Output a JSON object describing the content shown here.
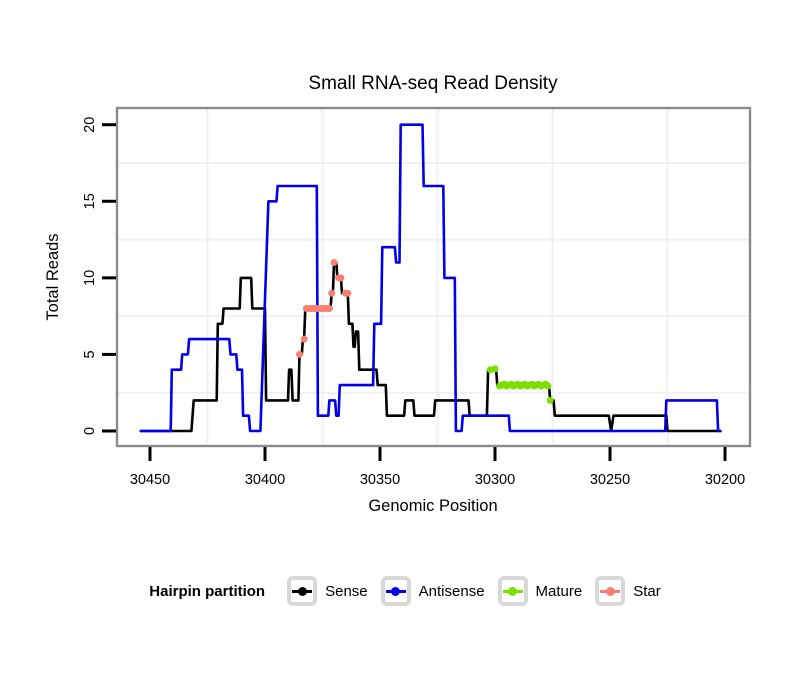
{
  "chart_data": {
    "type": "line",
    "title": "Small RNA-seq Read Density",
    "xlabel": "Genomic Position",
    "ylabel": "Total Reads",
    "x_ticks": [
      30450,
      30400,
      30350,
      30300,
      30250,
      30200
    ],
    "y_ticks": [
      0,
      5,
      10,
      15,
      20
    ],
    "x_axis_reversed": true,
    "x_range_shown": [
      30464,
      30189
    ],
    "ylim": [
      0,
      20
    ],
    "grid": {
      "color": "#f0f0f0",
      "v_positions": [
        30425,
        30375,
        30325,
        30275,
        30225
      ],
      "h_values": [
        2.5,
        7.5,
        12.5,
        17.5
      ]
    },
    "panel_border_color": "#8a8a8a",
    "legend": {
      "title": "Hairpin partition",
      "items": [
        {
          "label": "Sense",
          "color": "#000000"
        },
        {
          "label": "Antisense",
          "color": "#0000ee"
        },
        {
          "label": "Mature",
          "color": "#7cdf00"
        },
        {
          "label": "Star",
          "color": "#fa8072"
        }
      ]
    },
    "series": [
      {
        "name": "Sense",
        "color": "#000000",
        "style": "line",
        "points": [
          [
            30454,
            0
          ],
          [
            30432,
            0
          ],
          [
            30431,
            2
          ],
          [
            30421,
            2
          ],
          [
            30420.5,
            7
          ],
          [
            30418.5,
            7
          ],
          [
            30418,
            8
          ],
          [
            30411,
            8
          ],
          [
            30410.5,
            10
          ],
          [
            30406,
            10
          ],
          [
            30405.5,
            8
          ],
          [
            30400,
            8
          ],
          [
            30399.5,
            2
          ],
          [
            30390,
            2
          ],
          [
            30389.5,
            4
          ],
          [
            30388.5,
            4
          ],
          [
            30388,
            2
          ],
          [
            30385.5,
            2
          ],
          [
            30385,
            5
          ],
          [
            30384,
            5
          ],
          [
            30383.5,
            6
          ],
          [
            30383,
            6
          ],
          [
            30382.5,
            8
          ],
          [
            30371.5,
            8
          ],
          [
            30371,
            9
          ],
          [
            30370.5,
            9
          ],
          [
            30370,
            11
          ],
          [
            30369,
            11
          ],
          [
            30368.5,
            10
          ],
          [
            30367,
            10
          ],
          [
            30366.5,
            9
          ],
          [
            30364,
            9
          ],
          [
            30363.5,
            7
          ],
          [
            30362,
            7
          ],
          [
            30361.5,
            5.5
          ],
          [
            30361,
            5.5
          ],
          [
            30360.5,
            6.5
          ],
          [
            30359.5,
            6.5
          ],
          [
            30359,
            4
          ],
          [
            30351.5,
            4
          ],
          [
            30351,
            3
          ],
          [
            30347.5,
            3
          ],
          [
            30347,
            1
          ],
          [
            30339.5,
            1
          ],
          [
            30339,
            2
          ],
          [
            30335.5,
            2
          ],
          [
            30335,
            1
          ],
          [
            30326.5,
            1
          ],
          [
            30326,
            2
          ],
          [
            30311.5,
            2
          ],
          [
            30311,
            1
          ],
          [
            30303.5,
            1
          ],
          [
            30303,
            4
          ],
          [
            30299.5,
            4
          ],
          [
            30299,
            3
          ],
          [
            30276.5,
            3
          ],
          [
            30276,
            2
          ],
          [
            30274.5,
            2
          ],
          [
            30274,
            1
          ],
          [
            30250.5,
            1
          ],
          [
            30249.5,
            0
          ],
          [
            30248.5,
            1
          ],
          [
            30225.5,
            1
          ],
          [
            30225,
            0
          ],
          [
            30202,
            0
          ]
        ]
      },
      {
        "name": "Antisense",
        "color": "#0000ee",
        "style": "line",
        "points": [
          [
            30454,
            0
          ],
          [
            30441,
            0
          ],
          [
            30440.5,
            4
          ],
          [
            30436.5,
            4
          ],
          [
            30436,
            5
          ],
          [
            30433.5,
            5
          ],
          [
            30433,
            6
          ],
          [
            30415.5,
            6
          ],
          [
            30415,
            5
          ],
          [
            30412.5,
            5
          ],
          [
            30412,
            4
          ],
          [
            30410,
            4
          ],
          [
            30409.5,
            1
          ],
          [
            30407,
            1
          ],
          [
            30406.5,
            0
          ],
          [
            30402,
            0
          ],
          [
            30398.5,
            15
          ],
          [
            30395,
            15
          ],
          [
            30394.5,
            16
          ],
          [
            30377.5,
            16
          ],
          [
            30377,
            1
          ],
          [
            30372.5,
            1
          ],
          [
            30372,
            2
          ],
          [
            30369.5,
            2
          ],
          [
            30369,
            1
          ],
          [
            30368,
            1
          ],
          [
            30367.5,
            3
          ],
          [
            30353,
            3
          ],
          [
            30352.5,
            7
          ],
          [
            30349.5,
            7
          ],
          [
            30349,
            12
          ],
          [
            30343.5,
            12
          ],
          [
            30343,
            11
          ],
          [
            30341.5,
            11
          ],
          [
            30341,
            20
          ],
          [
            30331.5,
            20
          ],
          [
            30331,
            16
          ],
          [
            30322.5,
            16
          ],
          [
            30322,
            10
          ],
          [
            30317.5,
            10
          ],
          [
            30317,
            0
          ],
          [
            30314.5,
            0
          ],
          [
            30314,
            1
          ],
          [
            30294,
            1
          ],
          [
            30293.5,
            0
          ],
          [
            30226,
            0
          ],
          [
            30225.5,
            2
          ],
          [
            30203.5,
            2
          ],
          [
            30203,
            0
          ],
          [
            30202,
            0
          ]
        ]
      },
      {
        "name": "Mature",
        "color": "#7cdf00",
        "style": "points",
        "squiggle": true,
        "points": [
          [
            30302,
            4
          ],
          [
            30300,
            4
          ],
          [
            30298,
            3
          ],
          [
            30297,
            3
          ],
          [
            30296,
            3
          ],
          [
            30295,
            3
          ],
          [
            30294,
            3
          ],
          [
            30293,
            3
          ],
          [
            30292,
            3
          ],
          [
            30291,
            3
          ],
          [
            30290,
            3
          ],
          [
            30289,
            3
          ],
          [
            30288,
            3
          ],
          [
            30287,
            3
          ],
          [
            30286,
            3
          ],
          [
            30285,
            3
          ],
          [
            30284,
            3
          ],
          [
            30283,
            3
          ],
          [
            30282,
            3
          ],
          [
            30281,
            3
          ],
          [
            30280,
            3
          ],
          [
            30279,
            3
          ],
          [
            30278,
            3
          ],
          [
            30277,
            3
          ],
          [
            30276,
            2
          ]
        ]
      },
      {
        "name": "Star",
        "color": "#fa8072",
        "style": "points",
        "squiggle": false,
        "points": [
          [
            30385,
            5
          ],
          [
            30383,
            6
          ],
          [
            30382,
            8
          ],
          [
            30381,
            8
          ],
          [
            30380,
            8
          ],
          [
            30379,
            8
          ],
          [
            30378,
            8
          ],
          [
            30377,
            8
          ],
          [
            30376,
            8
          ],
          [
            30375,
            8
          ],
          [
            30374,
            8
          ],
          [
            30373,
            8
          ],
          [
            30372,
            8
          ],
          [
            30371,
            9
          ],
          [
            30370,
            11
          ],
          [
            30368,
            10
          ],
          [
            30367,
            10
          ],
          [
            30365,
            9
          ],
          [
            30364,
            9
          ]
        ]
      }
    ]
  }
}
